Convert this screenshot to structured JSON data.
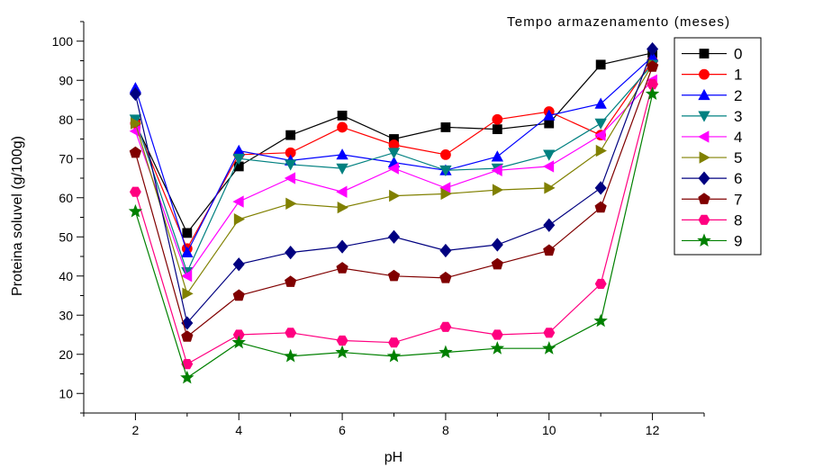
{
  "chart_data": {
    "type": "line",
    "xlabel": "pH",
    "ylabel": "Proteina soluvel (g/100g)",
    "legend_title": "Tempo armazenamento (meses)",
    "legend_position": "right",
    "grid": false,
    "xlim": [
      1,
      13
    ],
    "ylim": [
      5,
      105
    ],
    "x_ticks": [
      "2",
      "4",
      "6",
      "8",
      "10",
      "12"
    ],
    "y_ticks": [
      "10",
      "20",
      "30",
      "40",
      "50",
      "60",
      "70",
      "80",
      "90",
      "100"
    ],
    "x": [
      2,
      3,
      4,
      5,
      6,
      7,
      8,
      9,
      10,
      11,
      12
    ],
    "series": [
      {
        "name": "0",
        "color": "#000000",
        "marker": "square",
        "values": [
          79,
          51,
          68,
          76,
          81,
          75,
          78,
          77.5,
          79,
          94,
          97
        ]
      },
      {
        "name": "1",
        "color": "#ff0000",
        "marker": "circle",
        "values": [
          79,
          47,
          71,
          71.5,
          78,
          73.5,
          71,
          80,
          82,
          76,
          95
        ]
      },
      {
        "name": "2",
        "color": "#0000ff",
        "marker": "triangle-up",
        "values": [
          88,
          46,
          72,
          69.5,
          71,
          69,
          67,
          70.5,
          81,
          84,
          96
        ]
      },
      {
        "name": "3",
        "color": "#008080",
        "marker": "triangle-down",
        "values": [
          80,
          41,
          70,
          68.5,
          67.5,
          71.5,
          67,
          67.5,
          71,
          79,
          94
        ]
      },
      {
        "name": "4",
        "color": "#ff00ff",
        "marker": "triangle-left",
        "values": [
          77,
          40,
          59,
          65,
          61.5,
          67.5,
          62.5,
          67,
          68,
          76,
          90
        ]
      },
      {
        "name": "5",
        "color": "#808000",
        "marker": "triangle-right",
        "values": [
          79,
          35.5,
          54.5,
          58.5,
          57.5,
          60.5,
          61,
          62,
          62.5,
          72,
          94
        ]
      },
      {
        "name": "6",
        "color": "#000080",
        "marker": "diamond",
        "values": [
          86.5,
          28,
          43,
          46,
          47.5,
          50,
          46.5,
          48,
          53,
          62.5,
          98
        ]
      },
      {
        "name": "7",
        "color": "#800000",
        "marker": "pentagon",
        "values": [
          71.5,
          24.5,
          35,
          38.5,
          42,
          40,
          39.5,
          43,
          46.5,
          57.5,
          93.5
        ]
      },
      {
        "name": "8",
        "color": "#ff0080",
        "marker": "hexagon",
        "values": [
          61.5,
          17.5,
          25,
          25.5,
          23.5,
          23,
          27,
          25,
          25.5,
          38,
          89
        ]
      },
      {
        "name": "9",
        "color": "#008000",
        "marker": "star",
        "values": [
          56.5,
          14,
          23,
          19.5,
          20.5,
          19.5,
          20.5,
          21.5,
          21.5,
          28.5,
          86.5
        ]
      }
    ]
  }
}
